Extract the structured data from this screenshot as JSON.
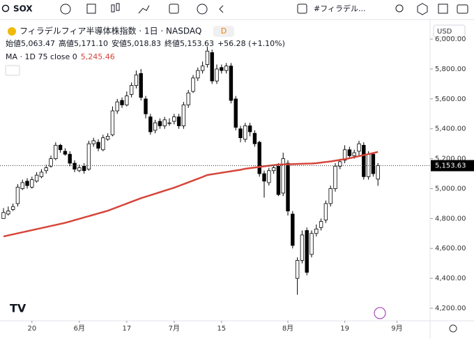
{
  "toolbar": {
    "symbol": "SOX",
    "indicator": "#フィラデル...",
    "currency": "USD"
  },
  "legend": {
    "title": "フィラデルフィア半導体株指数 · 1日 · NASDAQ",
    "badge": "D",
    "ohlc": [
      {
        "label": "始値",
        "value": "5,063.47"
      },
      {
        "label": "高値",
        "value": "5,171.10"
      },
      {
        "label": "安値",
        "value": "5,018.83"
      },
      {
        "label": "終値",
        "value": "5,153.63"
      }
    ],
    "change": "+56.28 (+1.10%)",
    "ma_label": "MA · 1D 75 close 0",
    "ma_value": "5,245.46"
  },
  "chart_data": {
    "type": "candlestick",
    "xlim": [
      -0.74,
      90
    ],
    "xticks": [
      {
        "value": 6,
        "label": "20"
      },
      {
        "value": 16,
        "label": "6月"
      },
      {
        "value": 26,
        "label": "17"
      },
      {
        "value": 36,
        "label": "7月"
      },
      {
        "value": 46,
        "label": "15"
      },
      {
        "value": 60,
        "label": "8月"
      },
      {
        "value": 72,
        "label": "19"
      },
      {
        "value": 83,
        "label": "9月"
      }
    ],
    "ylim": [
      4116,
      6131
    ],
    "yticks": [
      {
        "value": 4200,
        "label": "4,200.00"
      },
      {
        "value": 4400,
        "label": "4,400.00"
      },
      {
        "value": 4600,
        "label": "4,600.00"
      },
      {
        "value": 4800,
        "label": "4,800.00"
      },
      {
        "value": 5000,
        "label": "5,000.00"
      },
      {
        "value": 5200,
        "label": "5,200.00"
      },
      {
        "value": 5400,
        "label": "5,400.00"
      },
      {
        "value": 5600,
        "label": "5,600.00"
      },
      {
        "value": 5800,
        "label": "5,800.00"
      },
      {
        "value": 6000,
        "label": "6,000.00"
      }
    ],
    "open": [
      4800,
      4830,
      4860,
      4900,
      5000,
      5050,
      5010,
      5050,
      5080,
      5120,
      5150,
      5200,
      5290,
      5250,
      5230,
      5170,
      5120,
      5150,
      5130,
      5300,
      5310,
      5260,
      5330,
      5360,
      5520,
      5590,
      5560,
      5630,
      5690,
      5770,
      5600,
      5480,
      5390,
      5450,
      5420,
      5440,
      5450,
      5480,
      5420,
      5560,
      5650,
      5740,
      5790,
      5830,
      5910,
      5720,
      5810,
      5790,
      5820,
      5600,
      5400,
      5330,
      5420,
      5370,
      5310,
      5100,
      5040,
      5120,
      5150,
      4970,
      5170,
      4830,
      4400,
      4520,
      4720,
      4560,
      4700,
      4740,
      4790,
      4900,
      5000,
      5150,
      5190,
      5260,
      5220,
      5250,
      5290,
      5080,
      5230,
      5063.47
    ],
    "high": [
      4870,
      4880,
      4900,
      5030,
      5060,
      5070,
      5080,
      5110,
      5130,
      5160,
      5220,
      5310,
      5300,
      5270,
      5250,
      5190,
      5160,
      5170,
      5320,
      5340,
      5330,
      5360,
      5370,
      5550,
      5600,
      5610,
      5650,
      5710,
      5790,
      5800,
      5620,
      5500,
      5460,
      5470,
      5480,
      5470,
      5500,
      5500,
      5580,
      5660,
      5760,
      5810,
      5850,
      5950,
      5930,
      5830,
      5830,
      5840,
      5840,
      5620,
      5420,
      5440,
      5440,
      5390,
      5320,
      5120,
      5140,
      5160,
      5170,
      5240,
      5190,
      4850,
      4540,
      4720,
      4740,
      4720,
      4760,
      4800,
      4920,
      5020,
      5170,
      5200,
      5290,
      5280,
      5260,
      5320,
      5310,
      5250,
      5240,
      5171.1
    ],
    "low": [
      4810,
      4820,
      4850,
      4880,
      4990,
      5000,
      5000,
      5040,
      5070,
      5100,
      5140,
      5190,
      5240,
      5220,
      5150,
      5110,
      5110,
      5100,
      5120,
      5280,
      5250,
      5250,
      5320,
      5350,
      5500,
      5540,
      5550,
      5610,
      5670,
      5590,
      5470,
      5360,
      5370,
      5400,
      5400,
      5420,
      5430,
      5400,
      5400,
      5540,
      5640,
      5720,
      5770,
      5810,
      5700,
      5700,
      5770,
      5770,
      5570,
      5390,
      5310,
      5310,
      5350,
      5280,
      5080,
      4940,
      5020,
      5100,
      4950,
      4950,
      4820,
      4600,
      4290,
      4500,
      4420,
      4540,
      4680,
      4720,
      4770,
      4880,
      4980,
      5130,
      5170,
      5200,
      5200,
      5220,
      5060,
      5060,
      5080,
      5018.83
    ],
    "close": [
      4840,
      4850,
      4880,
      5010,
      5040,
      5020,
      5060,
      5090,
      5110,
      5140,
      5200,
      5290,
      5260,
      5230,
      5170,
      5130,
      5140,
      5120,
      5300,
      5320,
      5270,
      5340,
      5350,
      5520,
      5580,
      5560,
      5620,
      5690,
      5760,
      5610,
      5500,
      5380,
      5440,
      5420,
      5460,
      5440,
      5480,
      5420,
      5560,
      5640,
      5740,
      5790,
      5820,
      5920,
      5720,
      5800,
      5790,
      5820,
      5590,
      5410,
      5340,
      5420,
      5380,
      5300,
      5100,
      5050,
      5120,
      5140,
      4960,
      5200,
      4850,
      4620,
      4520,
      4690,
      4440,
      4700,
      4730,
      4780,
      4900,
      5000,
      5150,
      5180,
      5260,
      5220,
      5240,
      5300,
      5080,
      5230,
      5100,
      5153.63
    ],
    "up_color": "#ffffff",
    "down_color": "#000000",
    "ma": {
      "color": "#d6453a",
      "values": [
        4680,
        4687,
        4694,
        4701,
        4708,
        4715,
        4722,
        4729,
        4736,
        4743,
        4750,
        4757,
        4764,
        4771,
        4780,
        4789,
        4798,
        4807,
        4816,
        4825,
        4834,
        4843,
        4852,
        4864,
        4876,
        4888,
        4900,
        4912,
        4924,
        4936,
        4946,
        4956,
        4966,
        4976,
        4986,
        4996,
        5006,
        5018,
        5030,
        5042,
        5054,
        5066,
        5078,
        5091,
        5096,
        5101,
        5106,
        5111,
        5116,
        5121,
        5126,
        5133,
        5137,
        5141,
        5145,
        5149,
        5153,
        5157,
        5161,
        5162,
        5163,
        5164,
        5165,
        5166,
        5167,
        5168,
        5170,
        5174,
        5178,
        5182,
        5187,
        5192,
        5197,
        5203,
        5210,
        5217,
        5224,
        5231,
        5238,
        5245.46
      ]
    },
    "last_price": {
      "value": 5153.63,
      "label": "5,153.63"
    }
  }
}
